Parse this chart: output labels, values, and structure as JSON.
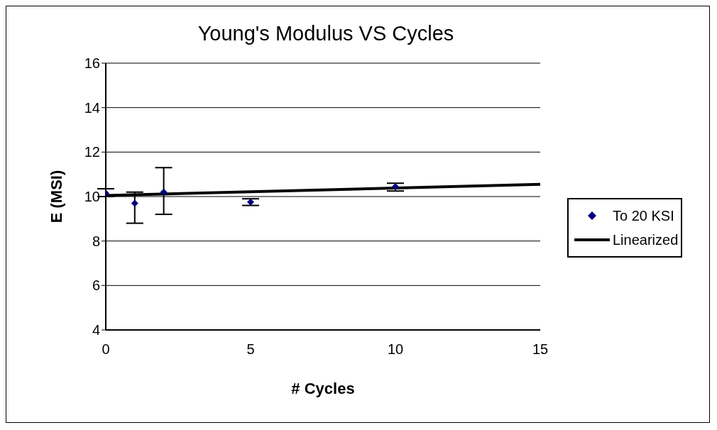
{
  "chart_data": {
    "type": "scatter",
    "title": "Young's Modulus VS Cycles",
    "xlabel": "# Cycles",
    "ylabel": "E (MSI)",
    "xlim": [
      0,
      15
    ],
    "xticks": [
      0,
      5,
      10,
      15
    ],
    "ylim": [
      4,
      16
    ],
    "yticks": [
      4,
      6,
      8,
      10,
      12,
      14,
      16
    ],
    "grid": "y",
    "legend": "right",
    "marker": "diamond",
    "series": [
      {
        "name": "To 20 KSI",
        "color": "#000080",
        "x": [
          0,
          1,
          2,
          5,
          10
        ],
        "values": [
          10.15,
          9.7,
          10.2,
          9.75,
          10.45
        ],
        "errors": [
          [
            10.0,
            10.35
          ],
          [
            8.8,
            10.2
          ],
          [
            9.2,
            11.3
          ],
          [
            9.6,
            9.9
          ],
          [
            10.25,
            10.6
          ]
        ]
      },
      {
        "name": "Linearized",
        "type": "line",
        "color": "#000000",
        "x": [
          0,
          15
        ],
        "values": [
          10.05,
          10.55
        ],
        "line_style": "solid",
        "marker": "none"
      }
    ]
  }
}
